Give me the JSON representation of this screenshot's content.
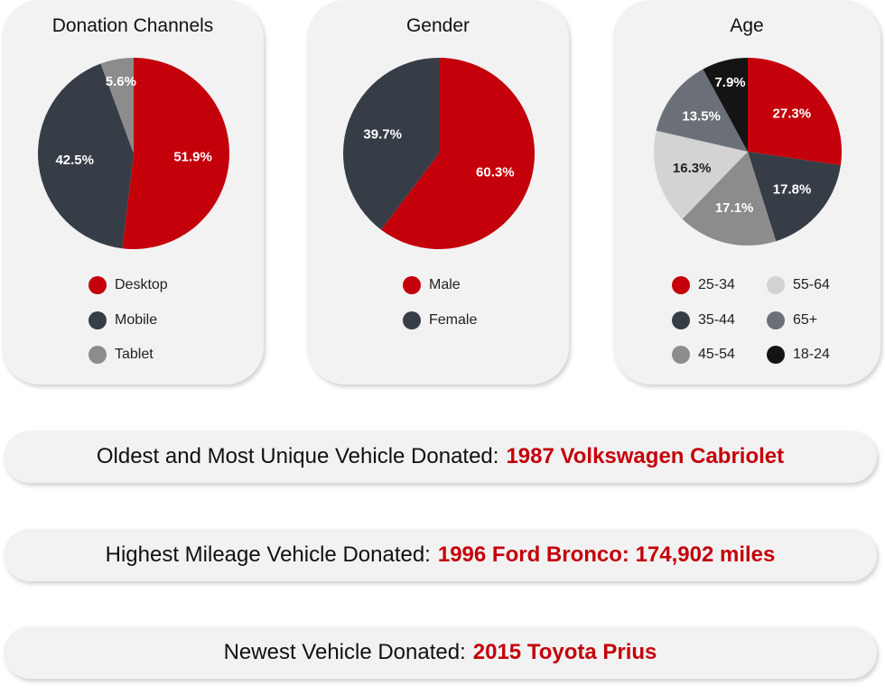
{
  "colors": {
    "red": "#c4000a",
    "dark": "#363d46",
    "gray": "#8c8c8c",
    "light": "#d3d3d3",
    "medium": "#6b7078",
    "black": "#141414"
  },
  "chart_data": [
    {
      "type": "pie",
      "title": "Donation Channels",
      "legend_placement": "bottom",
      "slices": [
        {
          "label": "Desktop",
          "value": 51.9,
          "value_label": "51.9%",
          "color": "#c4000a"
        },
        {
          "label": "Mobile",
          "value": 42.5,
          "value_label": "42.5%",
          "color": "#363d46"
        },
        {
          "label": "Tablet",
          "value": 5.6,
          "value_label": "5.6%",
          "color": "#8c8c8c"
        }
      ]
    },
    {
      "type": "pie",
      "title": "Gender",
      "legend_placement": "bottom",
      "slices": [
        {
          "label": "Male",
          "value": 60.3,
          "value_label": "60.3%",
          "color": "#c4000a"
        },
        {
          "label": "Female",
          "value": 39.7,
          "value_label": "39.7%",
          "color": "#363d46"
        }
      ]
    },
    {
      "type": "pie",
      "title": "Age",
      "legend_placement": "bottom",
      "slices": [
        {
          "label": "25-34",
          "value": 27.3,
          "value_label": "27.3%",
          "color": "#c4000a"
        },
        {
          "label": "35-44",
          "value": 17.8,
          "value_label": "17.8%",
          "color": "#363d46"
        },
        {
          "label": "45-54",
          "value": 17.1,
          "value_label": "17.1%",
          "color": "#8c8c8c"
        },
        {
          "label": "55-64",
          "value": 16.3,
          "value_label": "16.3%",
          "color": "#d3d3d3"
        },
        {
          "label": "65+",
          "value": 13.5,
          "value_label": "13.5%",
          "color": "#6b7078"
        },
        {
          "label": "18-24",
          "value": 7.9,
          "value_label": "7.9%",
          "color": "#141414"
        }
      ]
    }
  ],
  "banners": [
    {
      "label": "Oldest and Most Unique Vehicle Donated:",
      "value": "1987 Volkswagen Cabriolet"
    },
    {
      "label": "Highest Mileage Vehicle Donated:",
      "value": "1996 Ford Bronco: 174,902 miles"
    },
    {
      "label": "Newest Vehicle Donated:",
      "value": "2015 Toyota Prius"
    }
  ]
}
